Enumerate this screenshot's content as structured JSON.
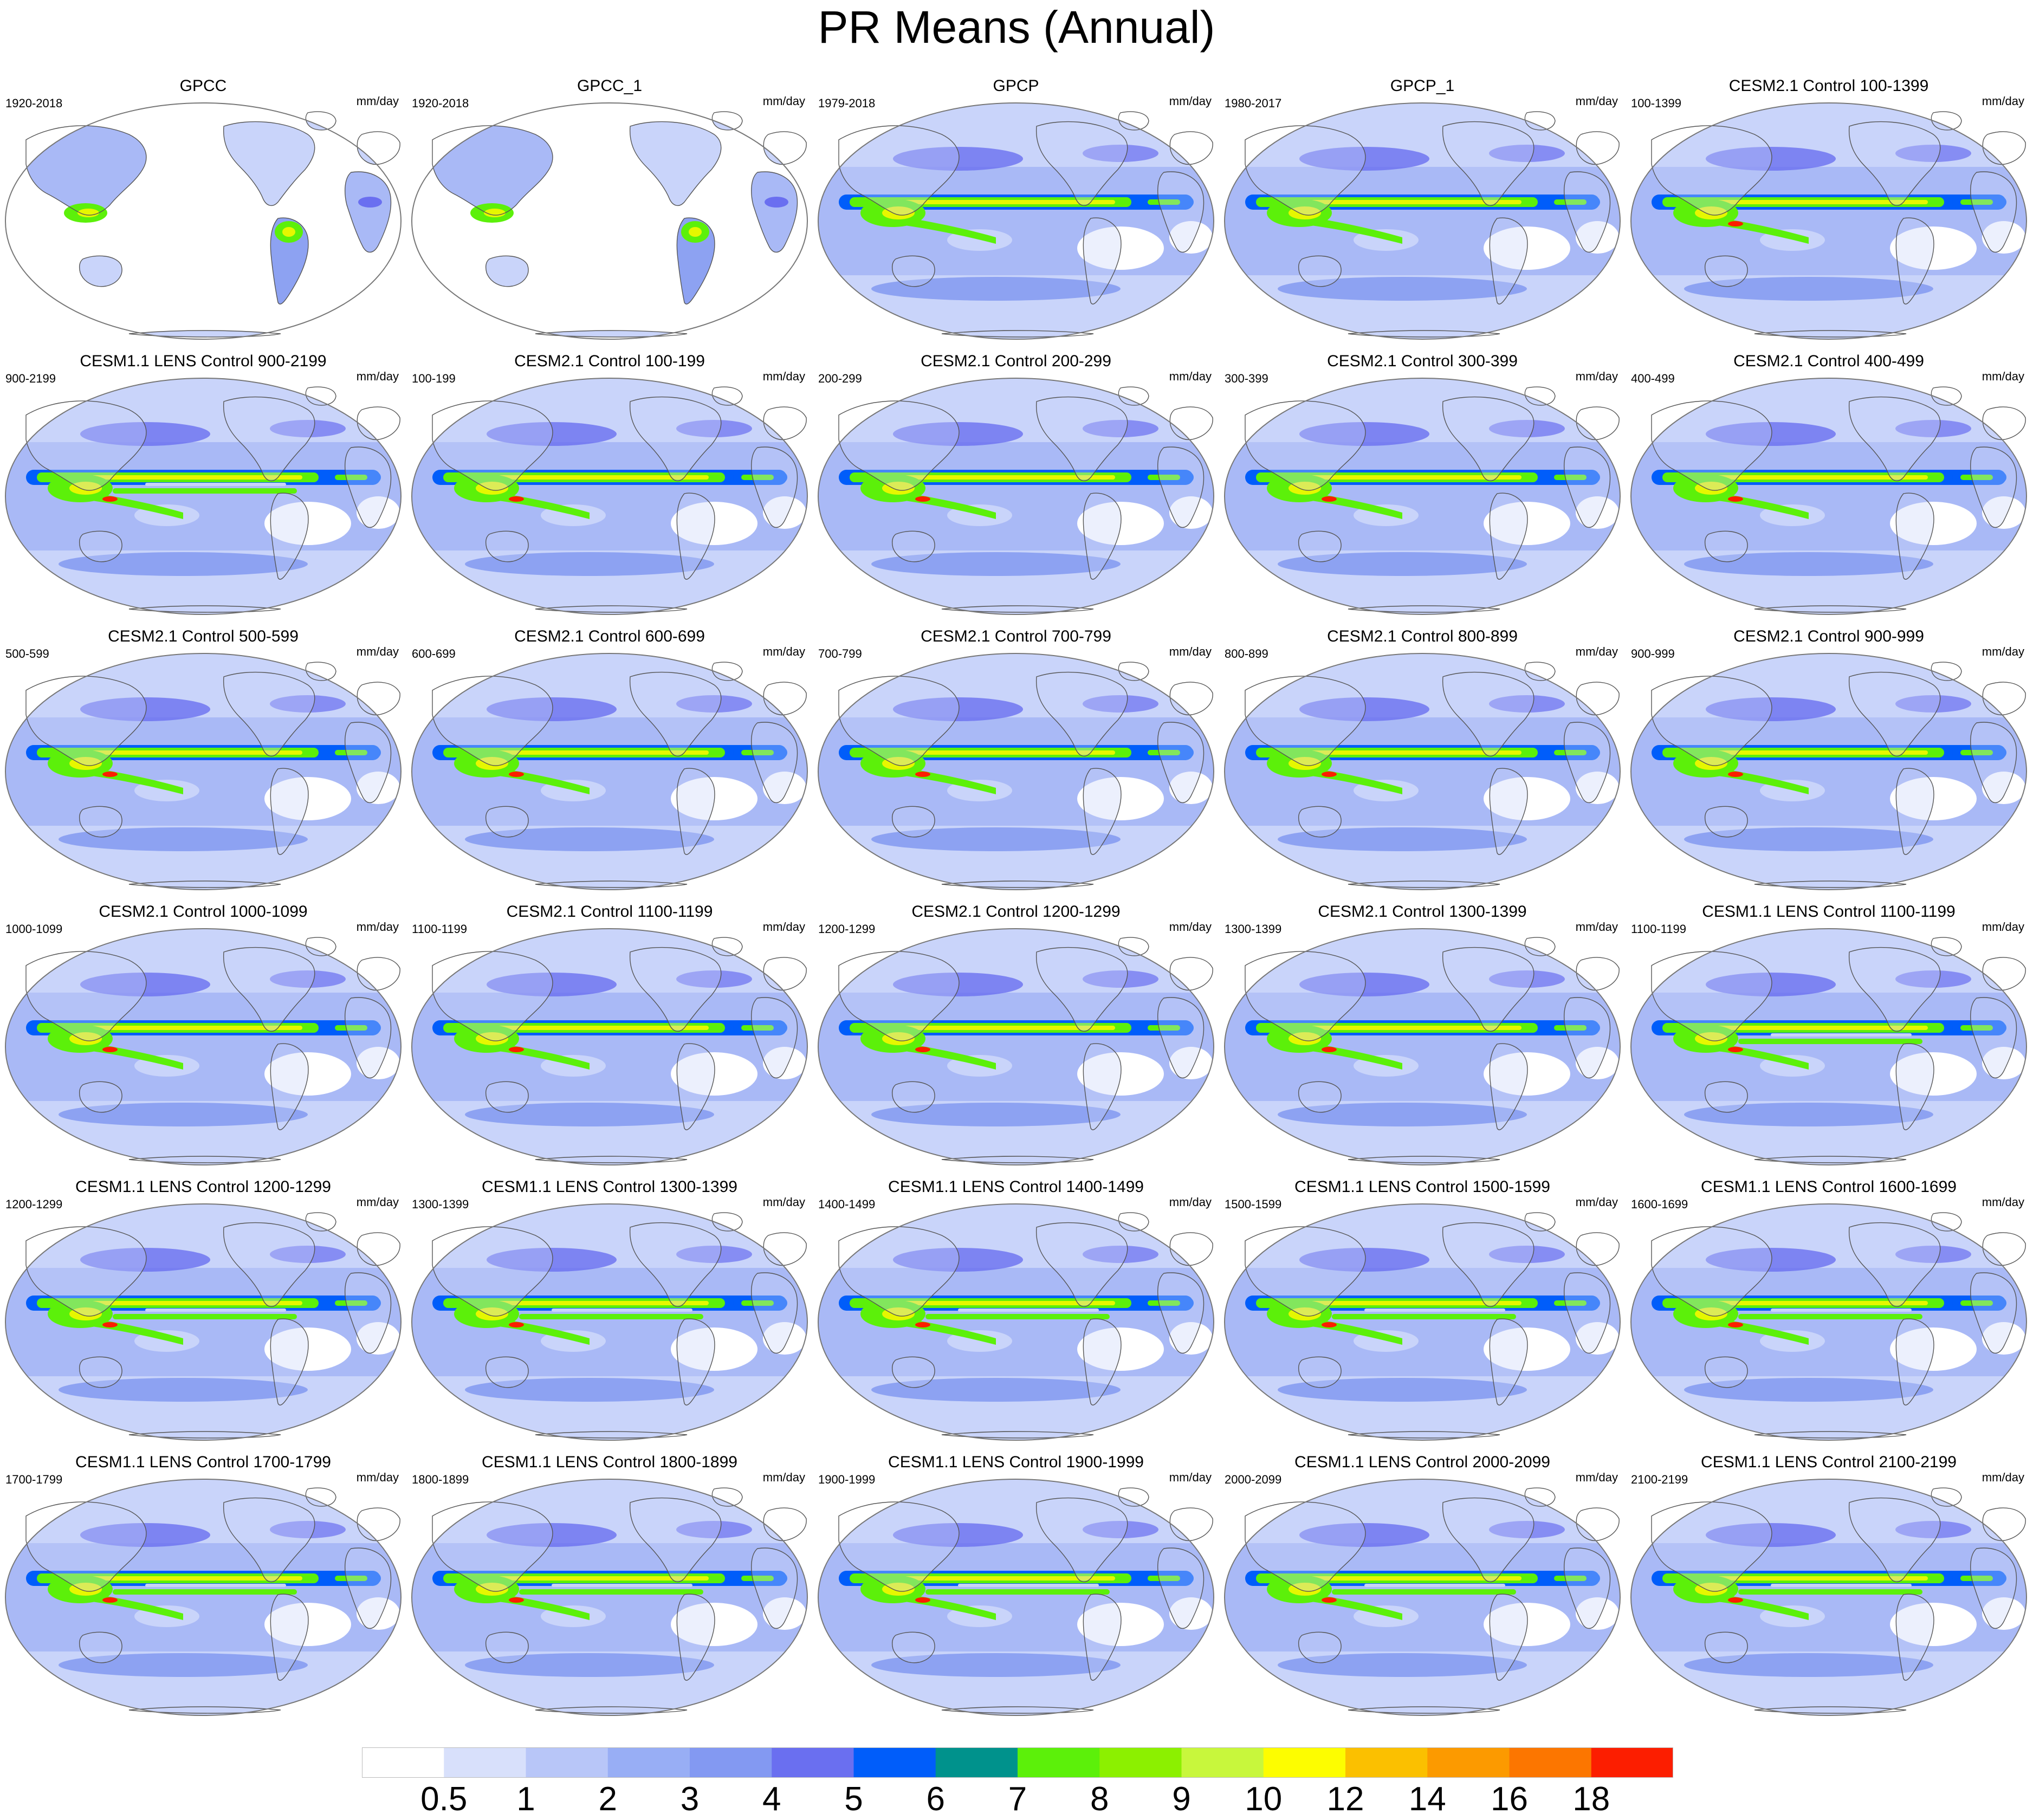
{
  "title": "PR Means (Annual)",
  "panels": [
    {
      "title": "GPCC",
      "period": "1920-2018",
      "units": "mm/day",
      "style": "land"
    },
    {
      "title": "GPCC_1",
      "period": "1920-2018",
      "units": "mm/day",
      "style": "land"
    },
    {
      "title": "GPCP",
      "period": "1979-2018",
      "units": "mm/day",
      "style": "obs"
    },
    {
      "title": "GPCP_1",
      "period": "1980-2017",
      "units": "mm/day",
      "style": "obs"
    },
    {
      "title": "CESM2.1 Control 100-1399",
      "period": "100-1399",
      "units": "mm/day",
      "style": "model"
    },
    {
      "title": "CESM1.1 LENS Control 900-2199",
      "period": "900-2199",
      "units": "mm/day",
      "style": "lens"
    },
    {
      "title": "CESM2.1 Control 100-199",
      "period": "100-199",
      "units": "mm/day",
      "style": "model"
    },
    {
      "title": "CESM2.1 Control 200-299",
      "period": "200-299",
      "units": "mm/day",
      "style": "model"
    },
    {
      "title": "CESM2.1 Control 300-399",
      "period": "300-399",
      "units": "mm/day",
      "style": "model"
    },
    {
      "title": "CESM2.1 Control 400-499",
      "period": "400-499",
      "units": "mm/day",
      "style": "model"
    },
    {
      "title": "CESM2.1 Control 500-599",
      "period": "500-599",
      "units": "mm/day",
      "style": "model"
    },
    {
      "title": "CESM2.1 Control 600-699",
      "period": "600-699",
      "units": "mm/day",
      "style": "model"
    },
    {
      "title": "CESM2.1 Control 700-799",
      "period": "700-799",
      "units": "mm/day",
      "style": "model"
    },
    {
      "title": "CESM2.1 Control 800-899",
      "period": "800-899",
      "units": "mm/day",
      "style": "model"
    },
    {
      "title": "CESM2.1 Control 900-999",
      "period": "900-999",
      "units": "mm/day",
      "style": "model"
    },
    {
      "title": "CESM2.1 Control 1000-1099",
      "period": "1000-1099",
      "units": "mm/day",
      "style": "model"
    },
    {
      "title": "CESM2.1 Control 1100-1199",
      "period": "1100-1199",
      "units": "mm/day",
      "style": "model"
    },
    {
      "title": "CESM2.1 Control 1200-1299",
      "period": "1200-1299",
      "units": "mm/day",
      "style": "model"
    },
    {
      "title": "CESM2.1 Control 1300-1399",
      "period": "1300-1399",
      "units": "mm/day",
      "style": "model"
    },
    {
      "title": "CESM1.1 LENS Control 1100-1199",
      "period": "1100-1199",
      "units": "mm/day",
      "style": "lens"
    },
    {
      "title": "CESM1.1 LENS Control 1200-1299",
      "period": "1200-1299",
      "units": "mm/day",
      "style": "lens"
    },
    {
      "title": "CESM1.1 LENS Control 1300-1399",
      "period": "1300-1399",
      "units": "mm/day",
      "style": "lens"
    },
    {
      "title": "CESM1.1 LENS Control 1400-1499",
      "period": "1400-1499",
      "units": "mm/day",
      "style": "lens"
    },
    {
      "title": "CESM1.1 LENS Control 1500-1599",
      "period": "1500-1599",
      "units": "mm/day",
      "style": "lens"
    },
    {
      "title": "CESM1.1 LENS Control 1600-1699",
      "period": "1600-1699",
      "units": "mm/day",
      "style": "lens"
    },
    {
      "title": "CESM1.1 LENS Control 1700-1799",
      "period": "1700-1799",
      "units": "mm/day",
      "style": "lens"
    },
    {
      "title": "CESM1.1 LENS Control 1800-1899",
      "period": "1800-1899",
      "units": "mm/day",
      "style": "lens"
    },
    {
      "title": "CESM1.1 LENS Control 1900-1999",
      "period": "1900-1999",
      "units": "mm/day",
      "style": "lens"
    },
    {
      "title": "CESM1.1 LENS Control 2000-2099",
      "period": "2000-2099",
      "units": "mm/day",
      "style": "lens"
    },
    {
      "title": "CESM1.1 LENS Control 2100-2199",
      "period": "2100-2199",
      "units": "mm/day",
      "style": "lens"
    }
  ],
  "colorbar": {
    "labels": [
      "0.5",
      "1",
      "2",
      "3",
      "4",
      "5",
      "6",
      "7",
      "8",
      "9",
      "10",
      "12",
      "14",
      "16",
      "18"
    ],
    "colors": [
      "#ffffff",
      "#d8e0fb",
      "#b8c6f8",
      "#98aef5",
      "#8399f2",
      "#6a6ff0",
      "#005dfa",
      "#00928c",
      "#5cf00a",
      "#8cf000",
      "#c8f73c",
      "#fdfd00",
      "#fbc000",
      "#fc9a00",
      "#fc7600",
      "#fc1e00"
    ]
  },
  "palette": {
    "ocean_light": "#c9d4fa",
    "ocean_mid": "#a9b9f6",
    "ocean_dark": "#8da2f2",
    "dry": "#ffffff",
    "storm": "#6a6ff0",
    "itcz_blue": "#005dfa",
    "itcz_green": "#5cf00a",
    "itcz_yellow": "#e6f700",
    "itcz_red": "#fc1e00",
    "coast": "#555555",
    "outline": "#777777"
  }
}
